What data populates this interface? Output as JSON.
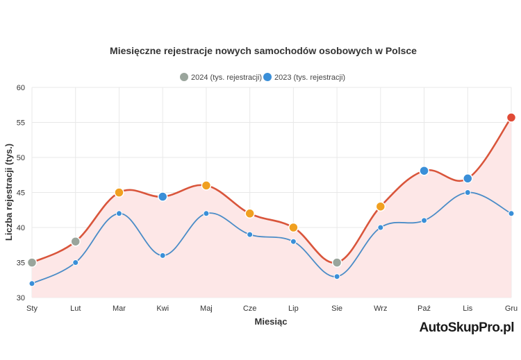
{
  "chart_data": {
    "type": "line",
    "title": "Miesięczne rejestracje nowych samochodów osobowych w Polsce",
    "xlabel": "Miesiąc",
    "ylabel": "Liczba rejestracji (tys.)",
    "categories": [
      "Sty",
      "Lut",
      "Mar",
      "Kwi",
      "Maj",
      "Cze",
      "Lip",
      "Sie",
      "Wrz",
      "Paź",
      "Lis",
      "Gru"
    ],
    "ylim": [
      30,
      60
    ],
    "yticks": [
      30,
      35,
      40,
      45,
      50,
      55,
      60
    ],
    "grid": true,
    "legend_position": "top-center",
    "series": [
      {
        "name": "2024 (tys. rejestracji)",
        "values": [
          35,
          38,
          45,
          44.4,
          46,
          42,
          40,
          35,
          43,
          48.1,
          47,
          55.7
        ],
        "line_color": "#d9553b",
        "fill_color": "#fde7e7",
        "legend_color": "#9aa59c",
        "point_colors": [
          "#9aa59c",
          "#9aa59c",
          "#f0a020",
          "#3a8fd8",
          "#f0a020",
          "#f0a020",
          "#f0a020",
          "#9aa59c",
          "#f0a020",
          "#3a8fd8",
          "#3a8fd8",
          "#e04a36"
        ]
      },
      {
        "name": "2023 (tys. rejestracji)",
        "values": [
          32,
          35,
          42,
          36,
          42,
          39,
          38,
          33,
          40,
          41,
          45,
          42
        ],
        "line_color": "#4a8cc7",
        "legend_color": "#3a8fd8",
        "point_color": "#3a8fd8"
      }
    ]
  },
  "watermark": "AutoSkupPro.pl"
}
